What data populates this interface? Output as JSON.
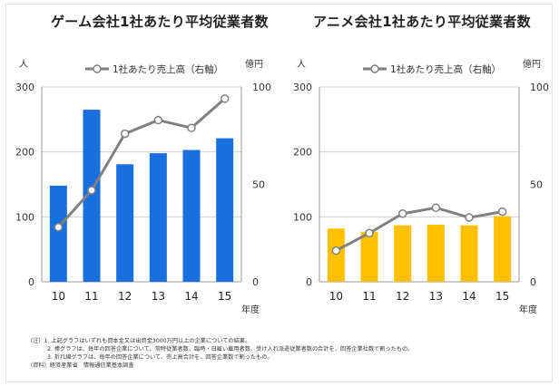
{
  "chart_data": [
    {
      "type": "bar",
      "title": "ゲーム会社1社あたり平均従業者数",
      "categories": [
        "10",
        "11",
        "12",
        "13",
        "14",
        "15"
      ],
      "series": [
        {
          "name": "平均従業者数",
          "axis": "left",
          "type": "bar",
          "values": [
            148,
            265,
            181,
            198,
            203,
            221
          ]
        },
        {
          "name": "1社あたり売上高（右軸）",
          "axis": "right",
          "type": "line",
          "values": [
            28,
            47,
            76,
            83,
            79,
            94
          ]
        }
      ],
      "ylabel_left": "人",
      "ylabel_right": "億円",
      "xlabel": "年度",
      "ylim_left": [
        0,
        300
      ],
      "yticks_left": [
        "0",
        "100",
        "200",
        "300"
      ],
      "ylim_right": [
        0,
        100
      ],
      "yticks_right": [
        "0",
        "50",
        "100"
      ],
      "legend": "1社あたり売上高（右軸）",
      "bar_color": "#1a6fdf",
      "line_color": "#808080"
    },
    {
      "type": "bar",
      "title": "アニメ会社1社あたり平均従業者数",
      "categories": [
        "10",
        "11",
        "12",
        "13",
        "14",
        "15"
      ],
      "series": [
        {
          "name": "平均従業者数",
          "axis": "left",
          "type": "bar",
          "values": [
            82,
            77,
            87,
            88,
            87,
            101
          ]
        },
        {
          "name": "1社あたり売上高（右軸）",
          "axis": "right",
          "type": "line",
          "values": [
            16,
            25,
            35,
            38,
            33,
            36
          ]
        }
      ],
      "ylabel_left": "人",
      "ylabel_right": "億円",
      "xlabel": "年度",
      "ylim_left": [
        0,
        300
      ],
      "yticks_left": [
        "0",
        "100",
        "200",
        "300"
      ],
      "ylim_right": [
        0,
        100
      ],
      "yticks_right": [
        "0",
        "50",
        "100"
      ],
      "legend": "1社あたり売上高（右軸）",
      "bar_color": "#ffc000",
      "line_color": "#808080"
    }
  ],
  "notes": {
    "line1": "（注）1. 上記グラフはいずれも資本金又は出資金3000万円以上の企業についての結果。",
    "line2": "2. 棒グラフは、毎年の回答企業について、常時従業者数、臨時・日雇い雇用者数、受け入れ派遣従業者数の合計を、回答企業社数で割ったもの。",
    "line3": "3. 折れ線グラフは、毎年の回答企業について、売上高合計を、回答企業数で割ったもの。",
    "line4": "（資料）経済産業省　情報通信業基本調査"
  }
}
